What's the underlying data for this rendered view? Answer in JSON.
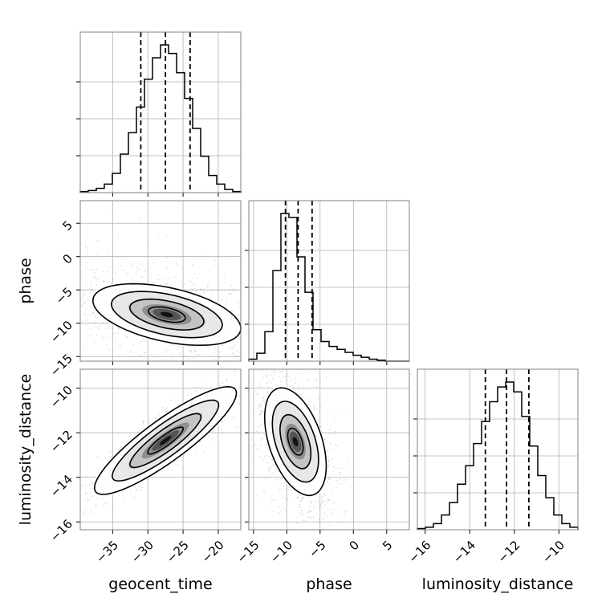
{
  "chart_data": {
    "type": "corner",
    "parameters": [
      "geocent_time",
      "phase",
      "luminosity_distance"
    ],
    "axis_labels": {
      "geocent_time": "geocent_time",
      "phase": "phase",
      "luminosity_distance": "luminosity_distance"
    },
    "ranges": {
      "geocent_time": [
        -39.6,
        -16.8
      ],
      "phase": [
        -15.7,
        8.4
      ],
      "luminosity_distance": [
        -16.35,
        -9.15
      ]
    },
    "ticks": {
      "geocent_time": [
        -35,
        -30,
        -25,
        -20
      ],
      "phase": [
        -15,
        -10,
        -5,
        0,
        5
      ],
      "luminosity_distance": [
        -16,
        -14,
        -12,
        -10
      ]
    },
    "tick_labels": {
      "geocent_time": [
        "−35",
        "−30",
        "−25",
        "−20"
      ],
      "phase": [
        "−15",
        "−10",
        "−5",
        "0",
        "5"
      ],
      "luminosity_distance": [
        "−16",
        "−14",
        "−12",
        "−10"
      ]
    },
    "quantiles": {
      "geocent_time": [
        -31.0,
        -27.5,
        -24.0
      ],
      "phase": [
        -10.2,
        -8.3,
        -6.2
      ],
      "luminosity_distance": [
        -13.3,
        -12.35,
        -11.35
      ]
    },
    "histograms": {
      "geocent_time": {
        "edges": [
          -39.6,
          -38.46,
          -37.32,
          -36.18,
          -35.04,
          -33.9,
          -32.76,
          -31.62,
          -30.48,
          -29.34,
          -28.2,
          -27.06,
          -25.92,
          -24.78,
          -23.64,
          -22.5,
          -21.36,
          -20.22,
          -19.08,
          -17.94,
          -16.8
        ],
        "counts": [
          1,
          2,
          4,
          8,
          18,
          36,
          56,
          80,
          106,
          126,
          138,
          130,
          112,
          88,
          60,
          34,
          16,
          8,
          3,
          1
        ]
      },
      "phase": {
        "edges": [
          -15.7,
          -14.495,
          -13.29,
          -12.085,
          -10.88,
          -9.675,
          -8.47,
          -7.265,
          -6.06,
          -4.855,
          -3.65,
          -2.445,
          -1.24,
          -0.035,
          1.17,
          2.375,
          3.58,
          4.785,
          5.99,
          7.195,
          8.4
        ],
        "counts": [
          2,
          8,
          30,
          92,
          150,
          146,
          106,
          70,
          32,
          20,
          15,
          12,
          9,
          6,
          4,
          2,
          1,
          0,
          0,
          0
        ]
      },
      "luminosity_distance": {
        "edges": [
          -16.35,
          -15.99,
          -15.63,
          -15.27,
          -14.91,
          -14.55,
          -14.19,
          -13.83,
          -13.47,
          -13.11,
          -12.75,
          -12.39,
          -12.03,
          -11.67,
          -11.31,
          -10.95,
          -10.59,
          -10.23,
          -9.87,
          -9.51,
          -9.15
        ],
        "counts": [
          1,
          2,
          5,
          12,
          22,
          37,
          52,
          70,
          88,
          104,
          116,
          120,
          112,
          92,
          68,
          44,
          26,
          12,
          5,
          2
        ]
      }
    },
    "densities": {
      "phase_vs_geocent_time": {
        "mean": [
          -27.3,
          -8.7
        ],
        "sd": [
          5.0,
          2.2
        ],
        "corr": -0.45,
        "smin": 1.6,
        "smax": 2.3
      },
      "luminosity_distance_vs_geocent_time": {
        "mean": [
          -27.5,
          -12.35
        ],
        "sd": [
          4.8,
          1.15
        ],
        "corr": 0.88,
        "smin": 1.1,
        "smax": 1.1
      },
      "luminosity_distance_vs_phase": {
        "mean": [
          -8.7,
          -12.4
        ],
        "sd": [
          2.2,
          1.15
        ],
        "corr": -0.45,
        "smin": 1.3,
        "smax": 1.9
      }
    },
    "contour_levels_sigma": [
      0.5,
      1.0,
      1.5,
      2.0
    ],
    "grid": true,
    "colors": {
      "hist": "#000000",
      "contour": "#000000",
      "grid": "#b0b0b0",
      "frame": "#808080",
      "quantile": "#000000"
    }
  }
}
